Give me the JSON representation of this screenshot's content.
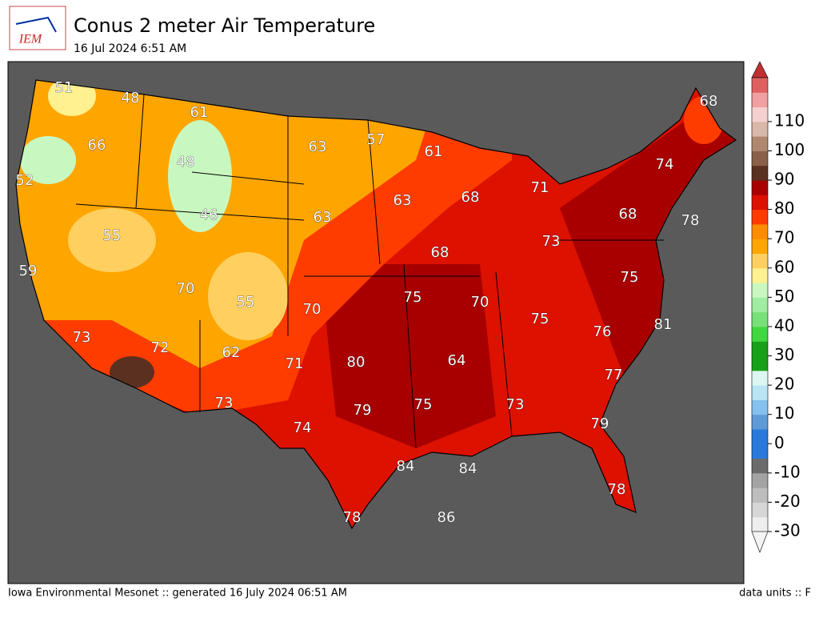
{
  "header": {
    "logo": "IEM",
    "title": "Conus 2 meter Air Temperature",
    "subtitle": "16 Jul 2024 6:51 AM"
  },
  "map": {
    "labels": [
      51,
      48,
      61,
      66,
      48,
      52,
      46,
      55,
      59,
      70,
      55,
      73,
      72,
      62,
      63,
      57,
      61,
      63,
      68,
      71,
      63,
      68,
      73,
      75,
      70,
      70,
      80,
      71,
      64,
      75,
      76,
      81,
      75,
      68,
      78,
      74,
      68,
      73,
      79,
      75,
      73,
      77,
      79,
      74,
      84,
      84,
      78,
      78,
      86
    ]
  },
  "colorbar": {
    "ticks": [
      -30,
      -20,
      -10,
      0,
      10,
      20,
      30,
      40,
      50,
      60,
      70,
      80,
      90,
      100,
      110
    ],
    "colors": [
      "#eeeeee",
      "#d6d6d6",
      "#bdbdbd",
      "#a3a3a3",
      "#6b6b6b",
      "#2a78dc",
      "#2a78dc",
      "#5e9ad6",
      "#85c0ee",
      "#b8e4f4",
      "#dcf7f2",
      "#18a018",
      "#18a018",
      "#40d840",
      "#78e078",
      "#a0eca0",
      "#c8f8c0",
      "#fff090",
      "#ffd060",
      "#ffa500",
      "#ff8c00",
      "#ff3c00",
      "#dd1100",
      "#a80000",
      "#5a3020",
      "#8a6048",
      "#b08870",
      "#d8b8a8",
      "#f4d0d0",
      "#f0a0a0",
      "#e06060"
    ],
    "under_color": "#f4f4f4",
    "over_color": "#c03030"
  },
  "footer": {
    "left": "Iowa Environmental Mesonet :: generated 16 July 2024 06:51 AM",
    "right": "data units :: F"
  }
}
